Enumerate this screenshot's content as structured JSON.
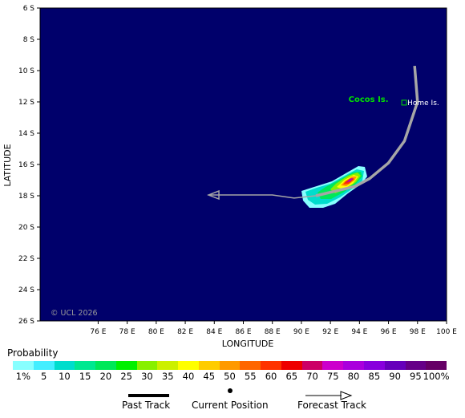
{
  "map": {
    "axes": {
      "xlabel": "LONGITUDE",
      "ylabel": "LATITUDE",
      "x_range": [
        72,
        100
      ],
      "y_range": [
        -26,
        -6
      ],
      "x_ticks": [
        76,
        78,
        80,
        82,
        84,
        86,
        88,
        90,
        92,
        94,
        96,
        98,
        100
      ],
      "y_ticks": [
        -6,
        -8,
        -10,
        -12,
        -14,
        -16,
        -18,
        -20,
        -22,
        -24,
        -26
      ],
      "x_tick_labels": [
        "76 E",
        "78 E",
        "80 E",
        "82 E",
        "84 E",
        "86 E",
        "88 E",
        "90 E",
        "92 E",
        "94 E",
        "96 E",
        "98 E",
        "100 E"
      ],
      "y_tick_labels": [
        "6 S",
        "8 S",
        "10 S",
        "12 S",
        "14 S",
        "16 S",
        "18 S",
        "20 S",
        "22 S",
        "24 S",
        "26 S"
      ]
    },
    "background_color": "#00006b",
    "track": {
      "color": "#a6a6a6",
      "past_points": [
        [
          97.8,
          -9.7
        ],
        [
          98.0,
          -12.0
        ],
        [
          97.1,
          -14.5
        ],
        [
          96.0,
          -15.9
        ],
        [
          94.7,
          -16.9
        ],
        [
          93.7,
          -17.4
        ],
        [
          91.0,
          -18.0
        ]
      ],
      "current_position": [
        91.0,
        -18.0
      ],
      "forecast_points": [
        [
          91.0,
          -18.0
        ],
        [
          89.5,
          -18.15
        ],
        [
          88.0,
          -17.95
        ],
        [
          83.6,
          -17.95
        ]
      ]
    },
    "places": [
      {
        "name": "Cocos Is.",
        "lon": 96.0,
        "lat": -12.0,
        "color": "#00e000"
      },
      {
        "name": "Home Is.",
        "lon": 97.3,
        "lat": -12.2,
        "color": "#ffffff"
      }
    ],
    "copyright": "© UCL 2026"
  },
  "legend": {
    "title": "Probability",
    "bins": [
      {
        "label": "1%",
        "color": "#88ffff"
      },
      {
        "label": "5",
        "color": "#44eeff"
      },
      {
        "label": "10",
        "color": "#00ddcc"
      },
      {
        "label": "15",
        "color": "#00e890"
      },
      {
        "label": "20",
        "color": "#00e858"
      },
      {
        "label": "25",
        "color": "#00f000"
      },
      {
        "label": "30",
        "color": "#88f000"
      },
      {
        "label": "35",
        "color": "#ccf000"
      },
      {
        "label": "40",
        "color": "#ffff00"
      },
      {
        "label": "45",
        "color": "#ffcc00"
      },
      {
        "label": "50",
        "color": "#ff9900"
      },
      {
        "label": "55",
        "color": "#ff6600"
      },
      {
        "label": "60",
        "color": "#ff3300"
      },
      {
        "label": "65",
        "color": "#ee0000"
      },
      {
        "label": "70",
        "color": "#cc0066"
      },
      {
        "label": "75",
        "color": "#cc00cc"
      },
      {
        "label": "80",
        "color": "#aa00dd"
      },
      {
        "label": "85",
        "color": "#8800dd"
      },
      {
        "label": "90",
        "color": "#6600bb"
      },
      {
        "label": "95",
        "color": "#660088"
      },
      {
        "label": "100%",
        "color": "#660066"
      }
    ]
  },
  "key": {
    "past_track": "Past Track",
    "current_position": "Current Position",
    "forecast_track": "Forecast Track"
  }
}
